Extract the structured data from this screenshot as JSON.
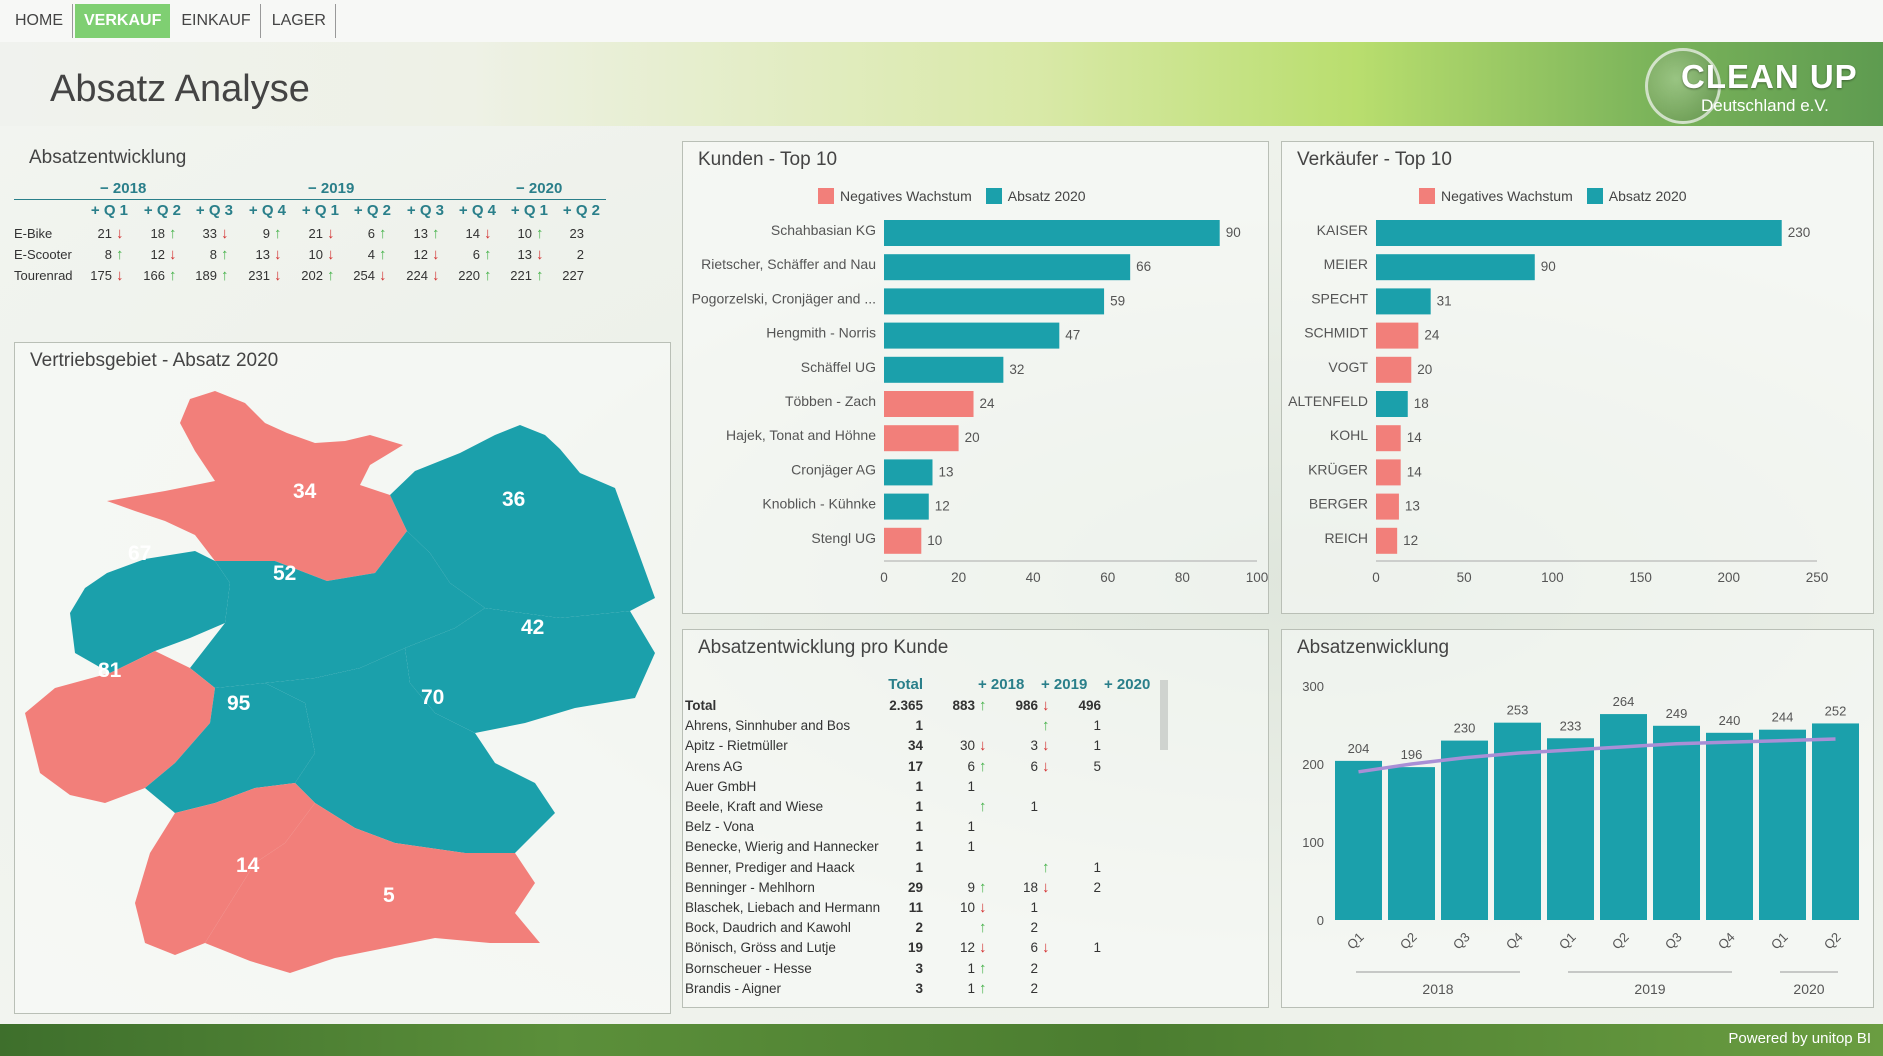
{
  "nav": {
    "items": [
      "HOME",
      "VERKAUF",
      "EINKAUF",
      "LAGER"
    ],
    "active": "VERKAUF"
  },
  "header": {
    "title": "Absatz Analyse",
    "logo_main": "CLEAN UP",
    "logo_sub": "Deutschland e.V."
  },
  "absatzentwicklung": {
    "title": "Absatzentwicklung",
    "years": [
      "2018",
      "2019",
      "2020"
    ],
    "quarters": [
      "Q1",
      "Q2",
      "Q3",
      "Q4",
      "Q1",
      "Q2",
      "Q3",
      "Q4",
      "Q1",
      "Q2"
    ],
    "rows": [
      {
        "label": "E-Bike",
        "values": [
          21,
          18,
          33,
          9,
          21,
          6,
          13,
          14,
          10,
          23
        ],
        "trend": [
          "down",
          "up",
          "down",
          "up",
          "down",
          "up",
          "up",
          "down",
          "up",
          ""
        ]
      },
      {
        "label": "E-Scooter",
        "values": [
          8,
          12,
          8,
          13,
          10,
          4,
          12,
          6,
          13,
          2
        ],
        "trend": [
          "up",
          "down",
          "up",
          "down",
          "down",
          "up",
          "down",
          "up",
          "down",
          ""
        ]
      },
      {
        "label": "Tourenrad",
        "values": [
          175,
          166,
          189,
          231,
          202,
          254,
          224,
          220,
          221,
          227
        ],
        "trend": [
          "down",
          "up",
          "up",
          "down",
          "up",
          "down",
          "down",
          "up",
          "up",
          ""
        ]
      }
    ]
  },
  "map": {
    "title": "Vertriebsgebiet - Absatz 2020",
    "regions": [
      {
        "value": "34",
        "status": "negative"
      },
      {
        "value": "36",
        "status": "positive"
      },
      {
        "value": "67",
        "status": "positive"
      },
      {
        "value": "52",
        "status": "positive"
      },
      {
        "value": "42",
        "status": "positive"
      },
      {
        "value": "81",
        "status": "negative"
      },
      {
        "value": "95",
        "status": "positive"
      },
      {
        "value": "70",
        "status": "positive"
      },
      {
        "value": "14",
        "status": "negative"
      },
      {
        "value": "5",
        "status": "negative"
      }
    ]
  },
  "colors": {
    "positive": "#1ba0ab",
    "negative": "#f27f7a",
    "up": "#46b24a",
    "down": "#d33030",
    "line": "#a98fd6"
  },
  "legend": {
    "negative": "Negatives Wachstum",
    "absatz": "Absatz 2020"
  },
  "chart_data": [
    {
      "id": "kunden",
      "type": "bar",
      "orientation": "horizontal",
      "title": "Kunden - Top 10",
      "categories": [
        "Schahbasian KG",
        "Rietscher, Schäffer and Nau",
        "Pogorzelski, Cronjäger and ...",
        "Hengmith - Norris",
        "Schäffel UG",
        "Többen - Zach",
        "Hajek, Tonat and Höhne",
        "Cronjäger AG",
        "Knoblich - Kühnke",
        "Stengl UG"
      ],
      "values": [
        90,
        66,
        59,
        47,
        32,
        24,
        20,
        13,
        12,
        10
      ],
      "negative": [
        false,
        false,
        false,
        false,
        false,
        true,
        true,
        false,
        false,
        true
      ],
      "series": [
        {
          "name": "Negatives Wachstum"
        },
        {
          "name": "Absatz 2020"
        }
      ],
      "xlim": [
        0,
        100
      ],
      "ticks": [
        0,
        20,
        40,
        60,
        80,
        100
      ]
    },
    {
      "id": "verkaeufer",
      "type": "bar",
      "orientation": "horizontal",
      "title": "Verkäufer - Top 10",
      "categories": [
        "KAISER",
        "MEIER",
        "SPECHT",
        "SCHMIDT",
        "VOGT",
        "ALTENFELD",
        "KOHL",
        "KRÜGER",
        "BERGER",
        "REICH"
      ],
      "values": [
        230,
        90,
        31,
        24,
        20,
        18,
        14,
        14,
        13,
        12
      ],
      "negative": [
        false,
        false,
        false,
        true,
        true,
        false,
        true,
        true,
        true,
        true
      ],
      "series": [
        {
          "name": "Negatives Wachstum"
        },
        {
          "name": "Absatz 2020"
        }
      ],
      "xlim": [
        0,
        250
      ],
      "ticks": [
        0,
        50,
        100,
        150,
        200,
        250
      ]
    },
    {
      "id": "absatzentwicklung",
      "type": "bar",
      "title": "Absatzenwicklung",
      "categories": [
        "Q1",
        "Q2",
        "Q3",
        "Q4",
        "Q1",
        "Q2",
        "Q3",
        "Q4",
        "Q1",
        "Q2"
      ],
      "groups": [
        {
          "label": "2018",
          "count": 4
        },
        {
          "label": "2019",
          "count": 4
        },
        {
          "label": "2020",
          "count": 2
        }
      ],
      "values": [
        204,
        196,
        230,
        253,
        233,
        264,
        249,
        240,
        244,
        252
      ],
      "trend": [
        190,
        200,
        208,
        214,
        218,
        222,
        226,
        228,
        230,
        232
      ],
      "ylim": [
        0,
        300
      ],
      "ticks": [
        0,
        100,
        200,
        300
      ]
    }
  ],
  "kunde_table": {
    "title": "Absatzentwicklung pro Kunde",
    "headers": [
      "Total",
      "2018",
      "2019",
      "2020"
    ],
    "rows": [
      {
        "name": "Total",
        "total": "2.365",
        "y2018": "883",
        "a2018": "up",
        "y2019": "986",
        "a2019": "down",
        "y2020": "496",
        "a2020": ""
      },
      {
        "name": "Ahrens, Sinnhuber and Bos",
        "total": "1",
        "y2018": "",
        "a2018": "",
        "y2019": "",
        "a2019": "up",
        "y2020": "1",
        "a2020": ""
      },
      {
        "name": "Apitz - Rietmüller",
        "total": "34",
        "y2018": "30",
        "a2018": "down",
        "y2019": "3",
        "a2019": "down",
        "y2020": "1",
        "a2020": ""
      },
      {
        "name": "Arens AG",
        "total": "17",
        "y2018": "6",
        "a2018": "up",
        "y2019": "6",
        "a2019": "down",
        "y2020": "5",
        "a2020": ""
      },
      {
        "name": "Auer GmbH",
        "total": "1",
        "y2018": "1",
        "a2018": "",
        "y2019": "",
        "a2019": "",
        "y2020": "",
        "a2020": ""
      },
      {
        "name": "Beele, Kraft and Wiese",
        "total": "1",
        "y2018": "",
        "a2018": "up",
        "y2019": "1",
        "a2019": "",
        "y2020": "",
        "a2020": ""
      },
      {
        "name": "Belz - Vona",
        "total": "1",
        "y2018": "1",
        "a2018": "",
        "y2019": "",
        "a2019": "",
        "y2020": "",
        "a2020": ""
      },
      {
        "name": "Benecke, Wierig and Hannecker",
        "total": "1",
        "y2018": "1",
        "a2018": "",
        "y2019": "",
        "a2019": "",
        "y2020": "",
        "a2020": ""
      },
      {
        "name": "Benner, Prediger and Haack",
        "total": "1",
        "y2018": "",
        "a2018": "",
        "y2019": "",
        "a2019": "up",
        "y2020": "1",
        "a2020": ""
      },
      {
        "name": "Benninger - Mehlhorn",
        "total": "29",
        "y2018": "9",
        "a2018": "up",
        "y2019": "18",
        "a2019": "down",
        "y2020": "2",
        "a2020": ""
      },
      {
        "name": "Blaschek, Liebach and Hermann",
        "total": "11",
        "y2018": "10",
        "a2018": "down",
        "y2019": "1",
        "a2019": "",
        "y2020": "",
        "a2020": ""
      },
      {
        "name": "Bock, Daudrich and Kawohl",
        "total": "2",
        "y2018": "",
        "a2018": "up",
        "y2019": "2",
        "a2019": "",
        "y2020": "",
        "a2020": ""
      },
      {
        "name": "Bönisch, Gröss and Lutje",
        "total": "19",
        "y2018": "12",
        "a2018": "down",
        "y2019": "6",
        "a2019": "down",
        "y2020": "1",
        "a2020": ""
      },
      {
        "name": "Bornscheuer - Hesse",
        "total": "3",
        "y2018": "1",
        "a2018": "up",
        "y2019": "2",
        "a2019": "",
        "y2020": "",
        "a2020": ""
      },
      {
        "name": "Brandis - Aigner",
        "total": "3",
        "y2018": "1",
        "a2018": "up",
        "y2019": "2",
        "a2019": "",
        "y2020": "",
        "a2020": ""
      }
    ]
  },
  "footer": {
    "text": "Powered by unitop BI"
  }
}
